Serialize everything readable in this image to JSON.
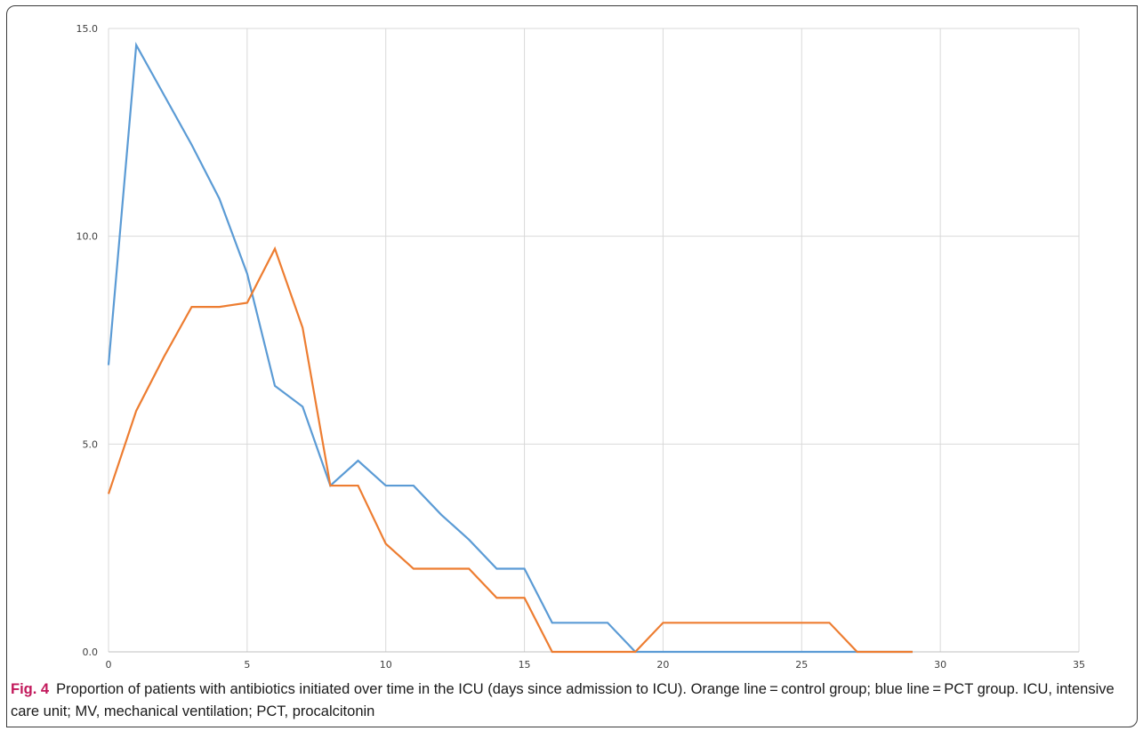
{
  "figure": {
    "label": "Fig. 4",
    "caption": "Proportion of patients with antibiotics initiated over time in the ICU (days since admission to ICU). Orange line = control group; blue line = PCT group. ICU, intensive care unit; MV, mechanical ventilation; PCT, procalcitonin"
  },
  "chart_data": {
    "type": "line",
    "title": "",
    "xlabel": "",
    "ylabel": "",
    "xlim": [
      0,
      35
    ],
    "ylim": [
      0,
      15
    ],
    "x_ticks": [
      "0",
      "5",
      "10",
      "15",
      "20",
      "25",
      "30",
      "35"
    ],
    "y_ticks": [
      "0.0",
      "5.0",
      "10.0",
      "15.0"
    ],
    "grid": true,
    "legend": "none",
    "series": [
      {
        "color": "#5b9bd5",
        "x": [
          0,
          1,
          2,
          3,
          4,
          5,
          6,
          7,
          8,
          9,
          10,
          11,
          12,
          13,
          14,
          15,
          16,
          17,
          18,
          19,
          20,
          21,
          22,
          23,
          24,
          25,
          26,
          27,
          28,
          29
        ],
        "y": [
          6.9,
          14.6,
          13.4,
          12.2,
          10.9,
          9.1,
          6.4,
          5.9,
          4.0,
          4.6,
          4.0,
          4.0,
          3.3,
          2.7,
          2.0,
          2.0,
          0.7,
          0.7,
          0.7,
          0.0,
          0.0,
          0.0,
          0.0,
          0.0,
          0.0,
          0.0,
          0.0,
          0.0,
          0.0,
          0.0
        ]
      },
      {
        "color": "#ed7d31",
        "x": [
          0,
          1,
          2,
          3,
          4,
          5,
          6,
          7,
          8,
          9,
          10,
          11,
          12,
          13,
          14,
          15,
          16,
          17,
          18,
          19,
          20,
          21,
          22,
          23,
          24,
          25,
          26,
          27,
          28,
          29
        ],
        "y": [
          3.8,
          5.8,
          7.1,
          8.3,
          8.3,
          8.4,
          9.7,
          7.8,
          4.0,
          4.0,
          2.6,
          2.0,
          2.0,
          2.0,
          1.3,
          1.3,
          0.0,
          0.0,
          0.0,
          0.0,
          0.7,
          0.7,
          0.7,
          0.7,
          0.7,
          0.7,
          0.7,
          0.0,
          0.0,
          0.0
        ]
      }
    ]
  }
}
